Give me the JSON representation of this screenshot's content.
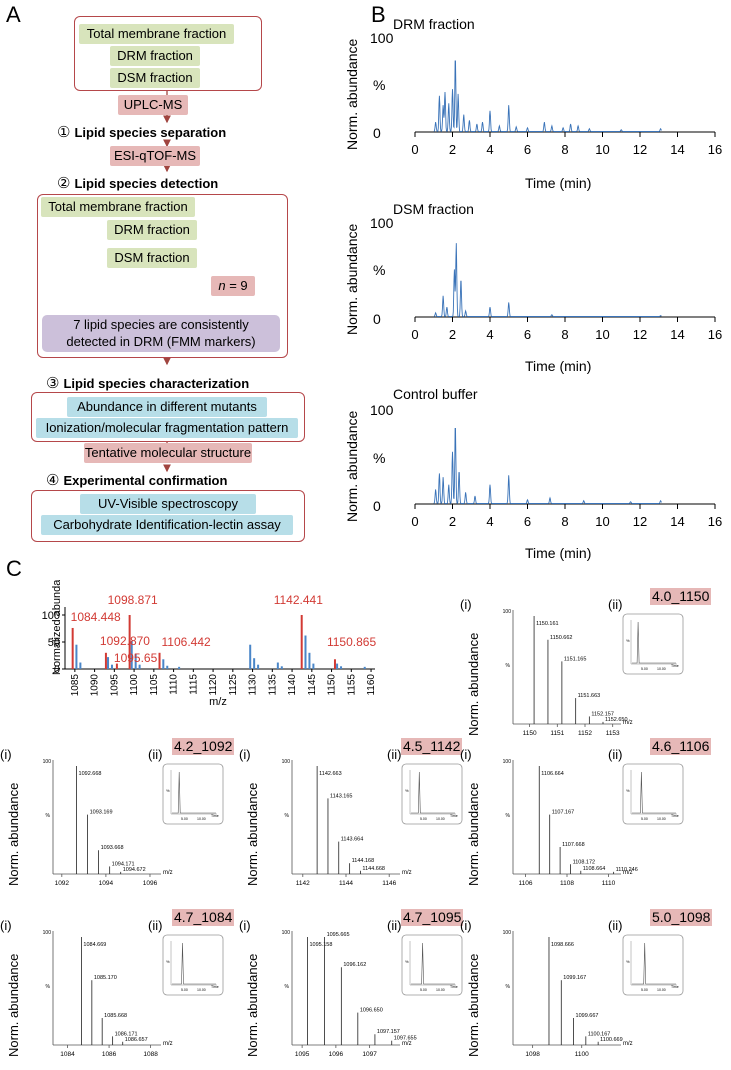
{
  "panels": {
    "A": "A",
    "B": "B",
    "C": "C"
  },
  "flow": {
    "top_fractions": [
      "Total membrane fraction",
      "DRM fraction",
      "DSM fraction"
    ],
    "uplc": "UPLC-MS",
    "step1": {
      "num": "①",
      "label": "Lipid species separation"
    },
    "esi": "ESI-qTOF-MS",
    "step2": {
      "num": "②",
      "label": "Lipid species detection"
    },
    "mid_fractions": [
      "Total membrane fraction",
      "DRM fraction",
      "DSM fraction"
    ],
    "n_label": "n",
    "n_value": " = 9",
    "consistent_line1": "7 lipid species are consistently",
    "consistent_line2": "detected in DRM (FMM markers)",
    "step3": {
      "num": "③",
      "label": "Lipid species characterization"
    },
    "char_items": [
      "Abundance in different mutants",
      "Ionization/molecular fragmentation pattern"
    ],
    "tentative": "Tentative molecular structure",
    "step4": {
      "num": "④",
      "label": "Experimental confirmation"
    },
    "confirm_items": [
      "UV-Visible spectroscopy",
      "Carbohydrate Identification-lectin assay"
    ]
  },
  "chromatograms": [
    {
      "title": "DRM fraction",
      "ylabel": "Norm. abundance",
      "pct": "%",
      "y_top": "100",
      "y_zero": "0",
      "xlabel": "Time (min)",
      "xticks": [
        "0",
        "2",
        "4",
        "6",
        "8",
        "10",
        "12",
        "14",
        "16"
      ]
    },
    {
      "title": "DSM fraction",
      "ylabel": "Norm. abundance",
      "pct": "%",
      "y_top": "100",
      "y_zero": "0",
      "xlabel": "Time (min)",
      "xticks": [
        "0",
        "2",
        "4",
        "6",
        "8",
        "10",
        "12",
        "14",
        "16"
      ]
    },
    {
      "title": "Control buffer",
      "ylabel": "Norm. abundance",
      "pct": "%",
      "y_top": "100",
      "y_zero": "0",
      "xlabel": "Time (min)",
      "xticks": [
        "0",
        "2",
        "4",
        "6",
        "8",
        "10",
        "12",
        "14",
        "16"
      ]
    }
  ],
  "chart_data": [
    {
      "type": "bar",
      "title": "",
      "ylabel": "Normalized abundance (%)",
      "xlabel": "m/z",
      "xlim": [
        1082,
        1161
      ],
      "ylim": [
        0,
        105
      ],
      "yticks": [
        "0",
        "50",
        "100"
      ],
      "xticks": [
        "1085",
        "1090",
        "1095",
        "1100",
        "1105",
        "1110",
        "1115",
        "1120",
        "1125",
        "1130",
        "1135",
        "1140",
        "1145",
        "1150",
        "1155",
        "1160"
      ],
      "bars_blue": [
        [
          1085.4,
          45
        ],
        [
          1086.4,
          12
        ],
        [
          1093.4,
          22
        ],
        [
          1094.4,
          8
        ],
        [
          1099.4,
          52
        ],
        [
          1100.4,
          28
        ],
        [
          1101.4,
          8
        ],
        [
          1107.4,
          18
        ],
        [
          1108.4,
          6
        ],
        [
          1111.4,
          4
        ],
        [
          1129.4,
          45
        ],
        [
          1130.4,
          20
        ],
        [
          1131.4,
          8
        ],
        [
          1136.4,
          12
        ],
        [
          1137.4,
          5
        ],
        [
          1143.4,
          62
        ],
        [
          1144.4,
          30
        ],
        [
          1145.4,
          10
        ],
        [
          1151.4,
          10
        ],
        [
          1152.4,
          5
        ],
        [
          1158.4,
          4
        ]
      ],
      "bars_red": [
        [
          1084.448,
          76
        ],
        [
          1092.87,
          30
        ],
        [
          1095.65,
          10
        ],
        [
          1098.871,
          100
        ],
        [
          1106.442,
          30
        ],
        [
          1142.441,
          100
        ],
        [
          1150.865,
          18
        ]
      ],
      "labels": [
        {
          "text": "1084.448",
          "mz": 1084.448
        },
        {
          "text": "1092.870",
          "mz": 1092.87
        },
        {
          "text": "1095.65",
          "mz": 1095.65
        },
        {
          "text": "1098.871",
          "mz": 1098.871
        },
        {
          "text": "1106.442",
          "mz": 1106.442
        },
        {
          "text": "1142.441",
          "mz": 1142.441
        },
        {
          "text": "1150.865",
          "mz": 1150.865
        }
      ]
    },
    {
      "type": "bar",
      "title": "4.0_1150",
      "peaks": [
        [
          1150.161,
          100
        ],
        [
          1150.662,
          78
        ],
        [
          1151.165,
          58
        ],
        [
          1151.663,
          24
        ],
        [
          1152.157,
          7
        ],
        [
          1152.65,
          2
        ]
      ],
      "peak_labels": [
        "1150.161",
        "1150.662",
        "1151.165",
        "1151.663",
        "1152.157",
        "1152.650"
      ],
      "xticks": [
        "1150",
        "1151",
        "1152",
        "1153"
      ],
      "xlim": [
        1149.4,
        1153.3
      ]
    },
    {
      "type": "bar",
      "title": "4.2_1092",
      "peaks": [
        [
          1092.668,
          100
        ],
        [
          1093.169,
          55
        ],
        [
          1093.668,
          22
        ],
        [
          1094.171,
          7
        ],
        [
          1094.672,
          2
        ]
      ],
      "peak_labels": [
        "1092.668",
        "1093.169",
        "1093.668",
        "1094.171",
        "1094.672"
      ],
      "xticks": [
        "1092",
        "1094",
        "1096"
      ],
      "xlim": [
        1091.6,
        1096.5
      ]
    },
    {
      "type": "bar",
      "title": "4.5_1142",
      "peaks": [
        [
          1142.663,
          100
        ],
        [
          1143.165,
          70
        ],
        [
          1143.664,
          30
        ],
        [
          1144.168,
          10
        ],
        [
          1144.668,
          3
        ]
      ],
      "peak_labels": [
        "1142.663",
        "1143.165",
        "1143.664",
        "1144.168",
        "1144.668"
      ],
      "xticks": [
        "1142",
        "1144",
        "1146"
      ],
      "xlim": [
        1141.5,
        1146.5
      ]
    },
    {
      "type": "bar",
      "title": "4.6_1106",
      "peaks": [
        [
          1106.664,
          100
        ],
        [
          1107.167,
          55
        ],
        [
          1107.668,
          25
        ],
        [
          1108.172,
          9
        ],
        [
          1108.664,
          3
        ],
        [
          1110.246,
          2
        ]
      ],
      "peak_labels": [
        "1106.664",
        "1107.167",
        "1107.668",
        "1108.172",
        "1108.664",
        "1110.246"
      ],
      "xticks": [
        "1106",
        "1108",
        "1110"
      ],
      "xlim": [
        1105.4,
        1110.6
      ]
    },
    {
      "type": "bar",
      "title": "4.7_1084",
      "peaks": [
        [
          1084.669,
          100
        ],
        [
          1085.17,
          60
        ],
        [
          1085.668,
          25
        ],
        [
          1086.171,
          8
        ],
        [
          1086.657,
          3
        ]
      ],
      "peak_labels": [
        "1084.669",
        "1085.170",
        "1085.668",
        "1086.171",
        "1086.657"
      ],
      "xticks": [
        "1084",
        "1086",
        "1088"
      ],
      "xlim": [
        1083.3,
        1088.5
      ]
    },
    {
      "type": "bar",
      "title": "4.7_1095",
      "peaks": [
        [
          1095.158,
          100
        ],
        [
          1095.665,
          100
        ],
        [
          1096.162,
          72
        ],
        [
          1096.65,
          30
        ],
        [
          1097.157,
          10
        ],
        [
          1097.655,
          4
        ]
      ],
      "peak_labels": [
        "1095.158",
        "1095.665",
        "1096.162",
        "1096.650",
        "1097.157",
        "1097.655"
      ],
      "xticks": [
        "1095",
        "1096",
        "1097"
      ],
      "xlim": [
        1094.7,
        1097.9
      ]
    },
    {
      "type": "bar",
      "title": "5.0_1098",
      "peaks": [
        [
          1098.666,
          100
        ],
        [
          1099.167,
          60
        ],
        [
          1099.667,
          25
        ],
        [
          1100.167,
          8
        ],
        [
          1100.669,
          3
        ]
      ],
      "peak_labels": [
        "1098.666",
        "1099.167",
        "1099.667",
        "1100.167",
        "1100.669"
      ],
      "xticks": [
        "1098",
        "1100"
      ],
      "xlim": [
        1097.2,
        1101.6
      ]
    }
  ],
  "mini": {
    "i": "(i)",
    "ii": "(ii)",
    "ylabel": "Norm. abundance",
    "xunit": "m/z",
    "inset_time": "Time",
    "inset_t1": "5.00",
    "inset_t2": "10.00",
    "inset_pct": "%"
  }
}
